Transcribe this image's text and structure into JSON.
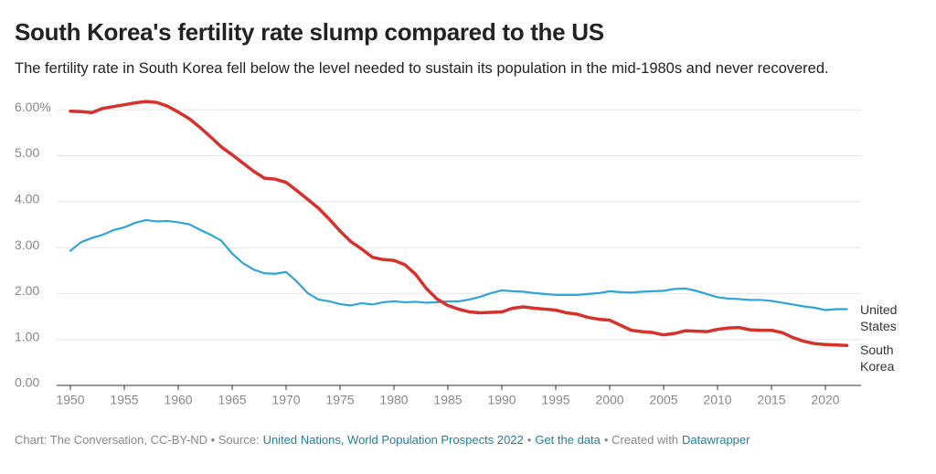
{
  "chart_data": {
    "type": "line",
    "title": "South Korea's fertility rate slump compared to the US",
    "subtitle": "The fertility rate in South Korea fell below the level needed to sustain its population in the mid-1980s and never recovered.",
    "x": [
      1950,
      1951,
      1952,
      1953,
      1954,
      1955,
      1956,
      1957,
      1958,
      1959,
      1960,
      1961,
      1962,
      1963,
      1964,
      1965,
      1966,
      1967,
      1968,
      1969,
      1970,
      1971,
      1972,
      1973,
      1974,
      1975,
      1976,
      1977,
      1978,
      1979,
      1980,
      1981,
      1982,
      1983,
      1984,
      1985,
      1986,
      1987,
      1988,
      1989,
      1990,
      1991,
      1992,
      1993,
      1994,
      1995,
      1996,
      1997,
      1998,
      1999,
      2000,
      2001,
      2002,
      2003,
      2004,
      2005,
      2006,
      2007,
      2008,
      2009,
      2010,
      2011,
      2012,
      2013,
      2014,
      2015,
      2016,
      2017,
      2018,
      2019,
      2020,
      2021,
      2022
    ],
    "series": [
      {
        "name": "United States",
        "color": "#2fa4d7",
        "values": [
          2.93,
          3.12,
          3.21,
          3.28,
          3.38,
          3.44,
          3.54,
          3.6,
          3.57,
          3.58,
          3.55,
          3.51,
          3.39,
          3.28,
          3.15,
          2.87,
          2.66,
          2.52,
          2.44,
          2.43,
          2.47,
          2.26,
          2.01,
          1.87,
          1.83,
          1.77,
          1.74,
          1.79,
          1.76,
          1.81,
          1.83,
          1.81,
          1.82,
          1.8,
          1.81,
          1.83,
          1.83,
          1.87,
          1.93,
          2.01,
          2.07,
          2.05,
          2.04,
          2.01,
          1.99,
          1.97,
          1.97,
          1.97,
          1.99,
          2.01,
          2.05,
          2.03,
          2.02,
          2.04,
          2.05,
          2.06,
          2.1,
          2.11,
          2.06,
          1.99,
          1.92,
          1.89,
          1.88,
          1.86,
          1.86,
          1.84,
          1.8,
          1.76,
          1.72,
          1.69,
          1.64,
          1.66,
          1.66
        ]
      },
      {
        "name": "South Korea",
        "color": "#d7312c",
        "values": [
          5.97,
          5.96,
          5.94,
          6.03,
          6.07,
          6.11,
          6.15,
          6.18,
          6.16,
          6.08,
          5.95,
          5.81,
          5.62,
          5.41,
          5.19,
          5.02,
          4.84,
          4.66,
          4.51,
          4.49,
          4.42,
          4.24,
          4.05,
          3.86,
          3.62,
          3.36,
          3.13,
          2.97,
          2.79,
          2.74,
          2.72,
          2.63,
          2.42,
          2.11,
          1.88,
          1.74,
          1.66,
          1.6,
          1.58,
          1.59,
          1.6,
          1.68,
          1.71,
          1.68,
          1.66,
          1.64,
          1.58,
          1.55,
          1.48,
          1.44,
          1.42,
          1.31,
          1.2,
          1.17,
          1.15,
          1.1,
          1.13,
          1.19,
          1.18,
          1.17,
          1.22,
          1.25,
          1.26,
          1.21,
          1.2,
          1.2,
          1.15,
          1.04,
          0.96,
          0.91,
          0.89,
          0.88,
          0.87
        ]
      }
    ],
    "xlim": [
      1950,
      2022
    ],
    "xticks": [
      1950,
      1955,
      1960,
      1965,
      1970,
      1975,
      1980,
      1985,
      1990,
      1995,
      2000,
      2005,
      2010,
      2015,
      2020
    ],
    "ylim": [
      0,
      6.3
    ],
    "yticks": [
      {
        "value": 0,
        "label": "0.00"
      },
      {
        "value": 1,
        "label": "1.00"
      },
      {
        "value": 2,
        "label": "2.00"
      },
      {
        "value": 3,
        "label": "3.00"
      },
      {
        "value": 4,
        "label": "4.00"
      },
      {
        "value": 5,
        "label": "5.00"
      },
      {
        "value": 6,
        "label": "6.00%"
      }
    ],
    "grid": true,
    "footer": {
      "credit": "Chart: The Conversation, CC-BY-ND • Source:",
      "source": "United Nations, World Population Prospects 2022",
      "sep": "•",
      "get_data": "Get the data",
      "created": "• Created with",
      "tool": "Datawrapper"
    }
  }
}
